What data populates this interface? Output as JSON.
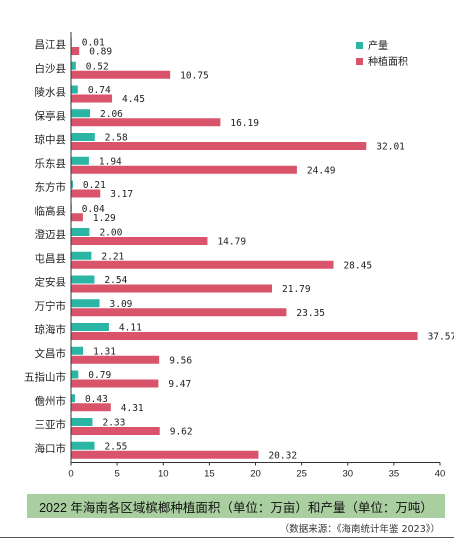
{
  "chart_data": {
    "type": "bar",
    "orientation": "horizontal",
    "title": "2022 年海南各区域槟榔种植面积（单位：万亩）和产量（单位：万吨）",
    "source": "（数据来源：《海南统计年鉴 2023》）",
    "categories": [
      "昌江县",
      "白沙县",
      "陵水县",
      "保亭县",
      "琼中县",
      "乐东县",
      "东方市",
      "临高县",
      "澄迈县",
      "屯昌县",
      "定安县",
      "万宁市",
      "琼海市",
      "文昌市",
      "五指山市",
      "儋州市",
      "三亚市",
      "海口市"
    ],
    "series": [
      {
        "name": "产量",
        "color": "#2ab5a5",
        "values": [
          0.01,
          0.52,
          0.74,
          2.06,
          2.58,
          1.94,
          0.21,
          0.04,
          2.0,
          2.21,
          2.54,
          3.09,
          4.11,
          1.31,
          0.79,
          0.43,
          2.33,
          2.55
        ],
        "labels": [
          "0.01",
          "0.52",
          "0.74",
          "2.06",
          "2.58",
          "1.94",
          "0.21",
          "0.04",
          "2.00",
          "2.21",
          "2.54",
          "3.09",
          "4.11",
          "1.31",
          "0.79",
          "0.43",
          "2.33",
          "2.55"
        ]
      },
      {
        "name": "种植面积",
        "color": "#d9536a",
        "values": [
          0.89,
          10.75,
          4.45,
          16.19,
          32.01,
          24.49,
          3.17,
          1.29,
          14.79,
          28.45,
          21.79,
          23.35,
          37.57,
          9.56,
          9.47,
          4.31,
          9.62,
          20.32
        ],
        "labels": [
          "0.89",
          "10.75",
          "4.45",
          "16.19",
          "32.01",
          "24.49",
          "3.17",
          "1.29",
          "14.79",
          "28.45",
          "21.79",
          "23.35",
          "37.57",
          "9.56",
          "9.47",
          "4.31",
          "9.62",
          "20.32"
        ]
      }
    ],
    "xlim": [
      0,
      40
    ],
    "xticks": [
      "0",
      "5",
      "10",
      "15",
      "20",
      "25",
      "30",
      "35",
      "40"
    ],
    "grid": false,
    "legend_position": "top-right"
  }
}
